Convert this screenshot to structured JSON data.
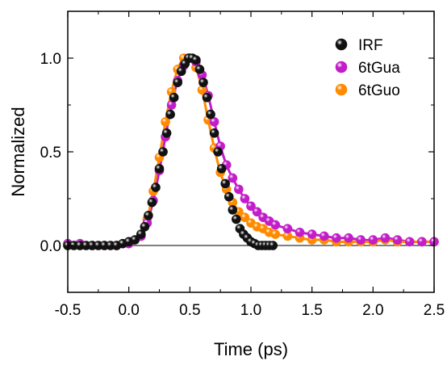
{
  "chart_data": {
    "type": "scatter",
    "title": "",
    "xlabel": "Time (ps)",
    "ylabel": "Normalized",
    "xlim": [
      -0.5,
      2.5
    ],
    "ylim": [
      -0.25,
      1.25
    ],
    "xticks": [
      "-0.5",
      "0.0",
      "0.5",
      "1.0",
      "1.5",
      "2.0",
      "2.5"
    ],
    "xtick_values": [
      -0.5,
      0.0,
      0.5,
      1.0,
      1.5,
      2.0,
      2.5
    ],
    "yticks": [
      "0.0",
      "0.5",
      "1.0"
    ],
    "ytick_values": [
      0.0,
      0.5,
      1.0
    ],
    "zero_line": true,
    "grid": false,
    "legend_position": "top-right",
    "series": [
      {
        "name": "IRF",
        "color": "#111111",
        "marker": "sphere",
        "has_fit_line": false,
        "x": [
          -0.5,
          -0.45,
          -0.4,
          -0.35,
          -0.3,
          -0.25,
          -0.2,
          -0.15,
          -0.1,
          -0.05,
          0.0,
          0.05,
          0.1,
          0.13,
          0.16,
          0.19,
          0.22,
          0.25,
          0.28,
          0.31,
          0.34,
          0.37,
          0.4,
          0.43,
          0.46,
          0.49,
          0.52,
          0.55,
          0.58,
          0.61,
          0.64,
          0.67,
          0.7,
          0.73,
          0.76,
          0.79,
          0.82,
          0.85,
          0.88,
          0.91,
          0.94,
          0.97,
          1.0,
          1.03,
          1.06,
          1.09,
          1.12,
          1.15,
          1.18
        ],
        "y": [
          0.0,
          0.0,
          0.0,
          0.0,
          0.0,
          0.0,
          0.0,
          0.0,
          0.0,
          0.01,
          0.02,
          0.03,
          0.06,
          0.1,
          0.16,
          0.23,
          0.31,
          0.41,
          0.5,
          0.6,
          0.7,
          0.79,
          0.87,
          0.93,
          0.97,
          1.0,
          1.0,
          0.99,
          0.94,
          0.87,
          0.79,
          0.7,
          0.6,
          0.5,
          0.41,
          0.33,
          0.26,
          0.19,
          0.14,
          0.09,
          0.06,
          0.04,
          0.02,
          0.01,
          0.0,
          0.0,
          0.0,
          0.0,
          0.0
        ]
      },
      {
        "name": "6tGua",
        "color": "#c21dc9",
        "marker": "sphere",
        "has_fit_line": true,
        "x": [
          -0.5,
          -0.4,
          -0.3,
          -0.2,
          -0.1,
          0.0,
          0.1,
          0.15,
          0.2,
          0.25,
          0.3,
          0.35,
          0.4,
          0.45,
          0.5,
          0.55,
          0.6,
          0.65,
          0.7,
          0.75,
          0.8,
          0.85,
          0.9,
          0.95,
          1.0,
          1.05,
          1.1,
          1.15,
          1.2,
          1.3,
          1.4,
          1.5,
          1.6,
          1.7,
          1.8,
          1.9,
          2.0,
          2.1,
          2.2,
          2.3,
          2.4,
          2.5
        ],
        "y": [
          0.01,
          0.01,
          0.0,
          0.0,
          0.0,
          0.01,
          0.05,
          0.12,
          0.24,
          0.4,
          0.58,
          0.75,
          0.88,
          0.96,
          1.0,
          0.98,
          0.91,
          0.8,
          0.66,
          0.53,
          0.43,
          0.36,
          0.3,
          0.25,
          0.21,
          0.18,
          0.15,
          0.13,
          0.11,
          0.09,
          0.07,
          0.06,
          0.05,
          0.04,
          0.04,
          0.03,
          0.03,
          0.04,
          0.03,
          0.02,
          0.02,
          0.02
        ]
      },
      {
        "name": "6tGuo",
        "color": "#ff8a00",
        "marker": "sphere",
        "has_fit_line": true,
        "x": [
          -0.5,
          -0.4,
          -0.3,
          -0.2,
          -0.1,
          0.0,
          0.1,
          0.15,
          0.2,
          0.25,
          0.3,
          0.35,
          0.4,
          0.45,
          0.5,
          0.55,
          0.6,
          0.65,
          0.7,
          0.75,
          0.8,
          0.85,
          0.9,
          0.95,
          1.0,
          1.05,
          1.1,
          1.15,
          1.2,
          1.3,
          1.4,
          1.5,
          1.6,
          1.7,
          1.8,
          1.9,
          2.0,
          2.1,
          2.2,
          2.3,
          2.4,
          2.5
        ],
        "y": [
          0.0,
          0.0,
          0.0,
          0.0,
          0.0,
          0.01,
          0.05,
          0.14,
          0.29,
          0.47,
          0.66,
          0.82,
          0.94,
          1.0,
          1.0,
          0.95,
          0.83,
          0.67,
          0.52,
          0.39,
          0.3,
          0.23,
          0.18,
          0.15,
          0.12,
          0.1,
          0.09,
          0.07,
          0.06,
          0.05,
          0.04,
          0.03,
          0.03,
          0.02,
          0.02,
          0.02,
          0.02,
          0.03,
          0.02,
          0.02,
          0.02,
          0.02
        ]
      }
    ]
  }
}
